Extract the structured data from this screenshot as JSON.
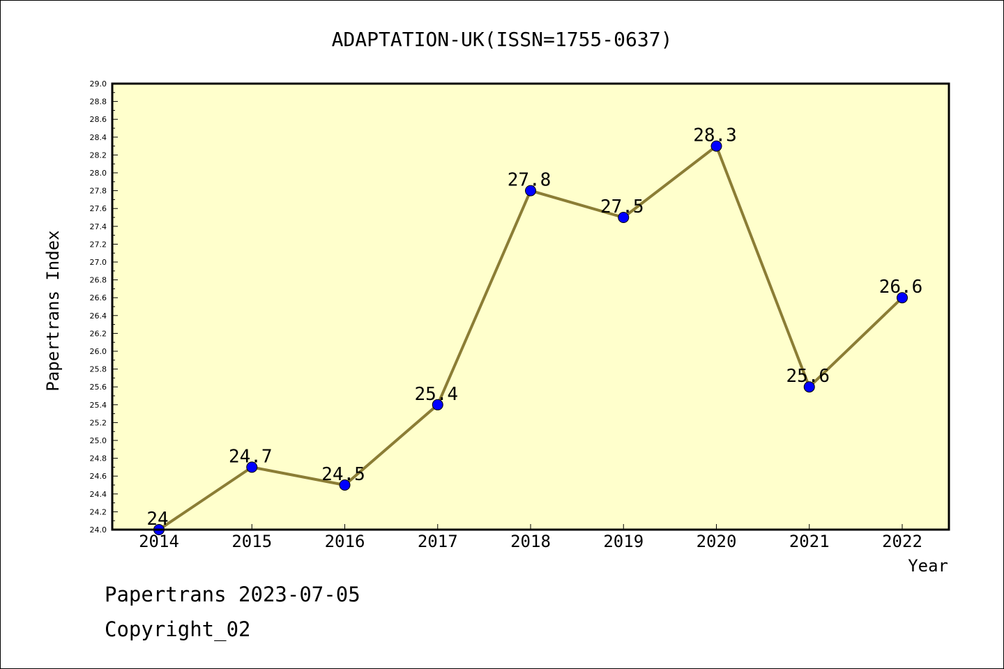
{
  "chart_data": {
    "type": "line",
    "title": "ADAPTATION-UK(ISSN=1755-0637)",
    "xlabel": "Year",
    "ylabel": "Papertrans Index",
    "categories": [
      "2014",
      "2015",
      "2016",
      "2017",
      "2018",
      "2019",
      "2020",
      "2021",
      "2022"
    ],
    "series": [
      {
        "values": [
          24.0,
          24.7,
          24.5,
          25.4,
          27.8,
          27.5,
          28.3,
          25.6,
          26.6
        ],
        "labels": [
          "24",
          "24.7",
          "24.5",
          "25.4",
          "27.8",
          "27.5",
          "28.3",
          "25.6",
          "26.6"
        ]
      }
    ],
    "ylim": [
      24.0,
      29.0
    ],
    "ytick_step": 0.2,
    "grid": false,
    "colors": {
      "plot_background": "#ffffcc",
      "line": "#8b7d35",
      "marker": "#0000ff"
    }
  },
  "footer": {
    "line1": "Papertrans 2023-07-05",
    "line2": "Copyright_02"
  }
}
